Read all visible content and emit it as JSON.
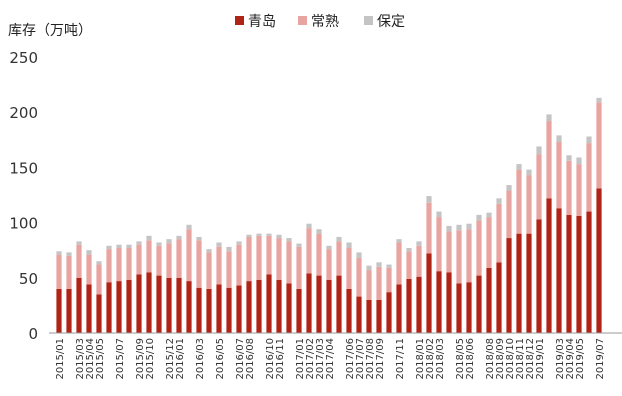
{
  "chart_data": {
    "type": "bar",
    "stacked": true,
    "ylabel": "库存（万吨）",
    "ylim": [
      0,
      250
    ],
    "yticks": [
      0,
      50,
      100,
      150,
      200,
      250
    ],
    "grid": false,
    "legend_position": "top-center",
    "colors": {
      "青岛": "#b02418",
      "常熟": "#e8a4a0",
      "保定": "#c4c4c4"
    },
    "categories": [
      "2015/01",
      "2015/02",
      "2015/03",
      "2015/04",
      "2015/05",
      "2015/06",
      "2015/07",
      "2015/08",
      "2015/09",
      "2015/10",
      "2015/11",
      "2015/12",
      "2016/01",
      "2016/02",
      "2016/03",
      "2016/04",
      "2016/05",
      "2016/06",
      "2016/07",
      "2016/08",
      "2016/09",
      "2016/10",
      "2016/11",
      "2016/12",
      "2017/01",
      "2017/02",
      "2017/03",
      "2017/04",
      "2017/05",
      "2017/06",
      "2017/07",
      "2017/08",
      "2017/09",
      "2017/10",
      "2017/11",
      "2017/12",
      "2018/01",
      "2018/02",
      "2018/03",
      "2018/04",
      "2018/05",
      "2018/06",
      "2018/07",
      "2018/08",
      "2018/09",
      "2018/10",
      "2018/11",
      "2018/12",
      "2019/01",
      "2019/02",
      "2019/03",
      "2019/04",
      "2019/05",
      "2019/06",
      "2019/07"
    ],
    "series": [
      {
        "name": "青岛",
        "values": [
          40,
          40,
          50,
          44,
          35,
          46,
          47,
          48,
          53,
          55,
          52,
          50,
          50,
          47,
          41,
          40,
          44,
          41,
          43,
          47,
          48,
          53,
          48,
          45,
          40,
          54,
          52,
          48,
          52,
          40,
          33,
          30,
          30,
          37,
          44,
          49,
          51,
          72,
          56,
          55,
          45,
          46,
          52,
          59,
          64,
          86,
          90,
          90,
          103,
          122,
          113,
          107,
          106,
          110,
          131
        ]
      },
      {
        "name": "常熟",
        "values": [
          31,
          30,
          30,
          27,
          27,
          30,
          30,
          29,
          27,
          29,
          27,
          31,
          35,
          47,
          43,
          33,
          34,
          33,
          37,
          40,
          40,
          35,
          38,
          38,
          38,
          41,
          38,
          28,
          31,
          37,
          35,
          27,
          30,
          22,
          38,
          25,
          28,
          46,
          49,
          37,
          48,
          48,
          50,
          46,
          53,
          43,
          58,
          53,
          59,
          70,
          60,
          49,
          47,
          62,
          78
        ]
      },
      {
        "name": "保定",
        "values": [
          3,
          3,
          3,
          4,
          3,
          3,
          3,
          3,
          3,
          4,
          3,
          4,
          3,
          4,
          3,
          3,
          4,
          4,
          3,
          2,
          2,
          2,
          3,
          3,
          3,
          4,
          4,
          3,
          4,
          5,
          5,
          4,
          4,
          3,
          3,
          3,
          4,
          6,
          5,
          5,
          5,
          5,
          5,
          4,
          5,
          5,
          5,
          5,
          7,
          6,
          6,
          5,
          6,
          6,
          4
        ]
      }
    ],
    "xtick_labels": [
      "2015/01",
      "2015/03",
      "2015/04",
      "2015/05",
      "2015/07",
      "2015/09",
      "2015/10",
      "2015/12",
      "2016/01",
      "2016/03",
      "2016/05",
      "2016/07",
      "2016/08",
      "2016/10",
      "2016/11",
      "2017/01",
      "2017/02",
      "2017/03",
      "2017/04",
      "2017/06",
      "2017/07",
      "2017/08",
      "2017/09",
      "2017/11",
      "2018/01",
      "2018/02",
      "2018/03",
      "2018/05",
      "2018/06",
      "2018/08",
      "2018/09",
      "2018/10",
      "2018/11",
      "2018/12",
      "2019/01",
      "2019/03",
      "2019/04",
      "2019/05",
      "2019/07"
    ]
  }
}
